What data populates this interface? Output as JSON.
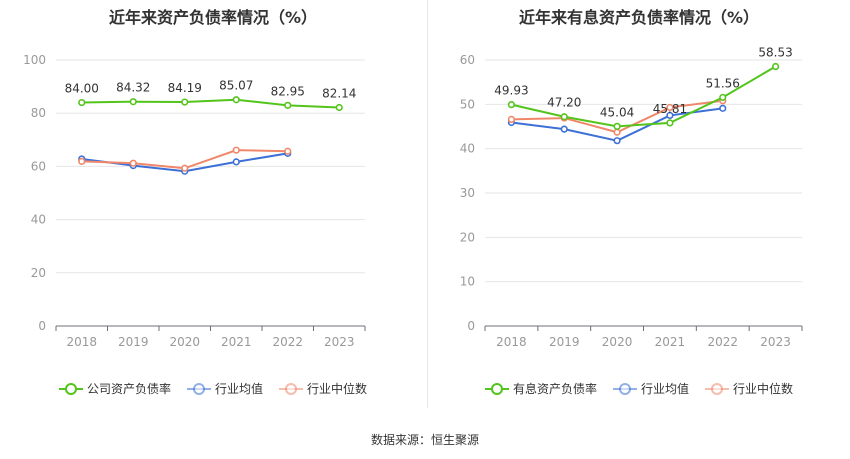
{
  "source_text": "数据来源：恒生聚源",
  "chart_data": [
    {
      "type": "line",
      "title": "近年来资产负债率情况（%）",
      "categories": [
        "2018",
        "2019",
        "2020",
        "2021",
        "2022",
        "2023"
      ],
      "ylim": [
        0,
        100
      ],
      "yticks": [
        0,
        20,
        40,
        60,
        80,
        100
      ],
      "grid": true,
      "legend_position": "bottom",
      "series": [
        {
          "name": "公司资产负债率",
          "color": "#52c41a",
          "labeled": true,
          "values": [
            84.0,
            84.32,
            84.19,
            85.07,
            82.95,
            82.14
          ],
          "labels": [
            "84.00",
            "84.32",
            "84.19",
            "85.07",
            "82.95",
            "82.14"
          ]
        },
        {
          "name": "行业均值",
          "color": "#3d70d6",
          "labeled": false,
          "values": [
            62.8,
            60.3,
            58.2,
            61.7,
            64.9,
            null
          ]
        },
        {
          "name": "行业中位数",
          "color": "#f0876a",
          "labeled": false,
          "values": [
            61.9,
            61.2,
            59.3,
            66.1,
            65.7,
            null
          ]
        }
      ]
    },
    {
      "type": "line",
      "title": "近年来有息资产负债率情况（%）",
      "categories": [
        "2018",
        "2019",
        "2020",
        "2021",
        "2022",
        "2023"
      ],
      "ylim": [
        0,
        60
      ],
      "yticks": [
        0,
        10,
        20,
        30,
        40,
        50,
        60
      ],
      "grid": true,
      "legend_position": "bottom",
      "series": [
        {
          "name": "有息资产负债率",
          "color": "#52c41a",
          "labeled": true,
          "values": [
            49.93,
            47.2,
            45.04,
            45.81,
            51.56,
            58.53
          ],
          "labels": [
            "49.93",
            "47.20",
            "45.04",
            "45.81",
            "51.56",
            "58.53"
          ]
        },
        {
          "name": "行业均值",
          "color": "#3d70d6",
          "labeled": false,
          "values": [
            45.9,
            44.4,
            41.8,
            47.5,
            49.1,
            null
          ]
        },
        {
          "name": "行业中位数",
          "color": "#f0876a",
          "labeled": false,
          "values": [
            46.6,
            46.9,
            43.7,
            49.3,
            50.8,
            null
          ]
        }
      ]
    }
  ]
}
